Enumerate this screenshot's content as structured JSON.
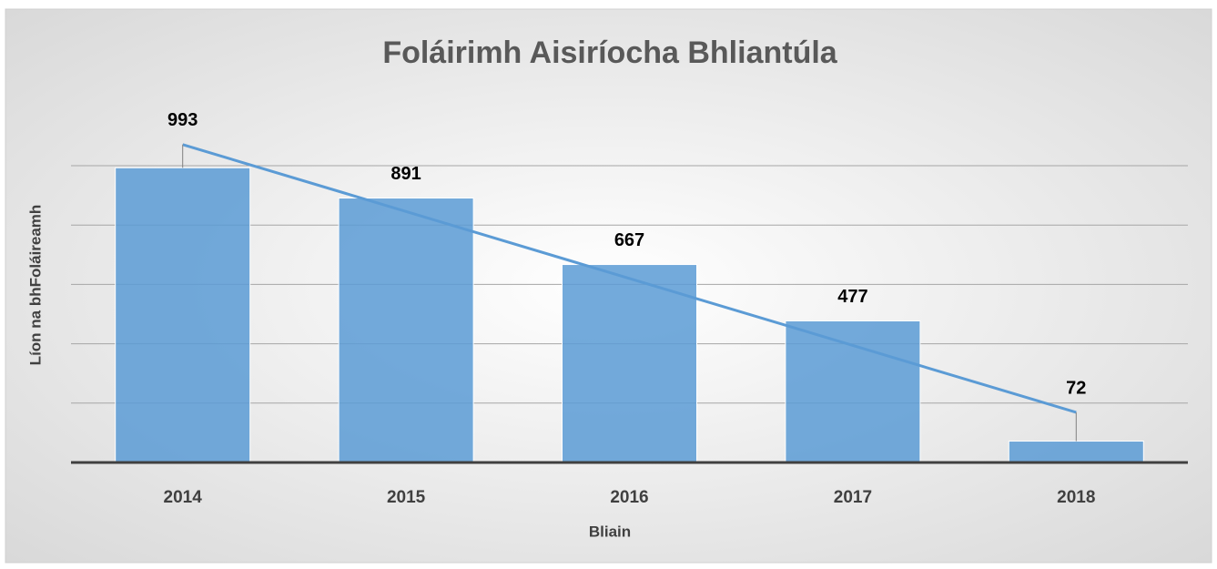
{
  "chart_data": {
    "type": "bar",
    "title": "Foláirimh Aisiríocha Bhliantúla",
    "x_label": "Bliain",
    "y_label": "Líon na bhFoláireamh",
    "categories": [
      "2014",
      "2015",
      "2016",
      "2017",
      "2018"
    ],
    "values": [
      993,
      891,
      667,
      477,
      72
    ],
    "color": "#5b9bd5",
    "trendline": "linear",
    "trendline_color": "#5b9bd5",
    "ylim": [
      0,
      1000
    ],
    "yticks": [
      0,
      200,
      400,
      600,
      800,
      1000
    ],
    "grid": true
  }
}
